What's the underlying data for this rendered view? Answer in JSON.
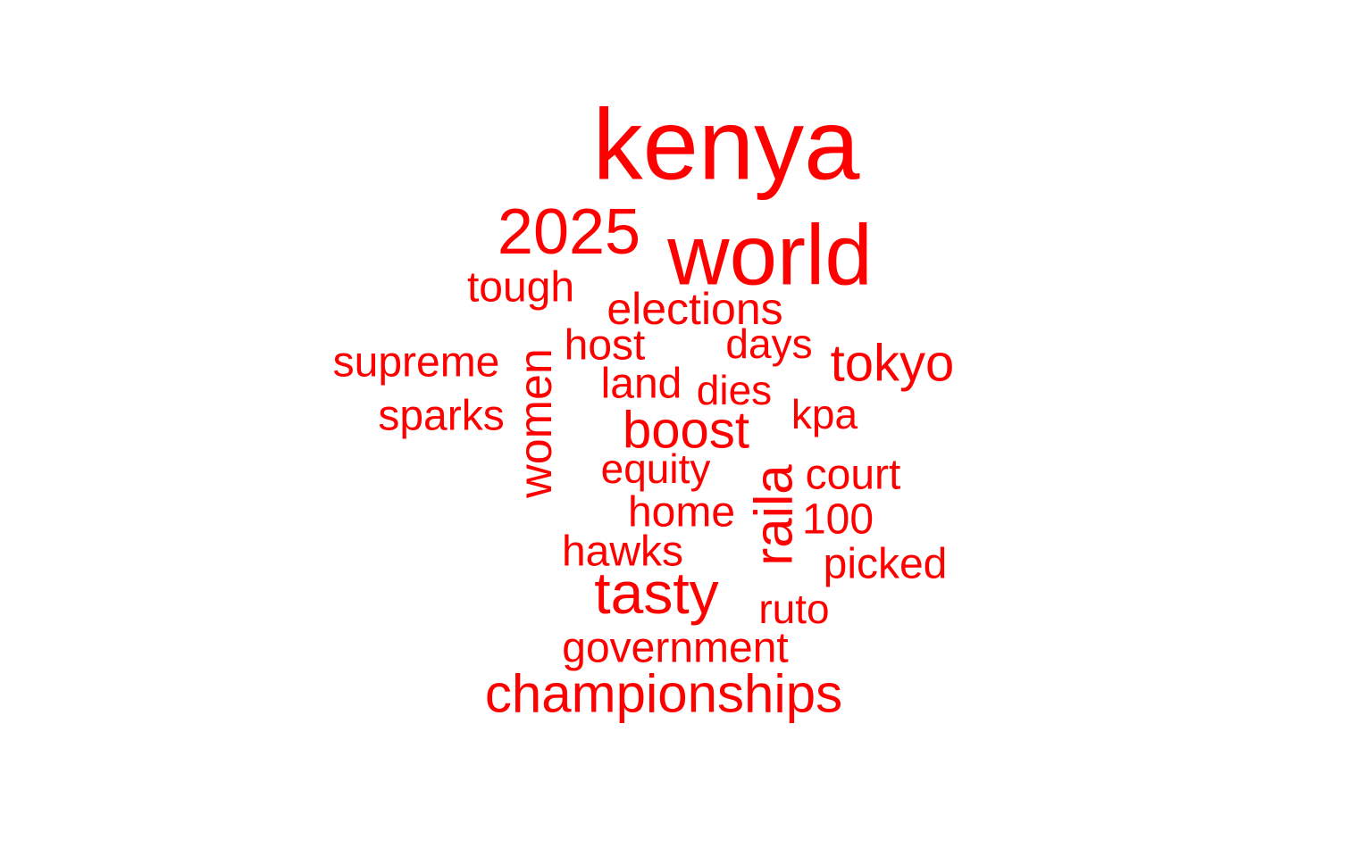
{
  "chart_data": {
    "type": "wordcloud",
    "color": "#ff0000",
    "background": "#ffffff",
    "words": [
      {
        "text": "kenya"
      },
      {
        "text": "world"
      },
      {
        "text": "2025"
      },
      {
        "text": "championships"
      },
      {
        "text": "tasty"
      },
      {
        "text": "boost"
      },
      {
        "text": "raila"
      },
      {
        "text": "women"
      },
      {
        "text": "tokyo"
      },
      {
        "text": "elections"
      },
      {
        "text": "tough"
      },
      {
        "text": "supreme"
      },
      {
        "text": "sparks"
      },
      {
        "text": "host"
      },
      {
        "text": "days"
      },
      {
        "text": "land"
      },
      {
        "text": "dies"
      },
      {
        "text": "kpa"
      },
      {
        "text": "equity"
      },
      {
        "text": "court"
      },
      {
        "text": "home"
      },
      {
        "text": "100"
      },
      {
        "text": "hawks"
      },
      {
        "text": "picked"
      },
      {
        "text": "ruto"
      },
      {
        "text": "government"
      }
    ]
  }
}
